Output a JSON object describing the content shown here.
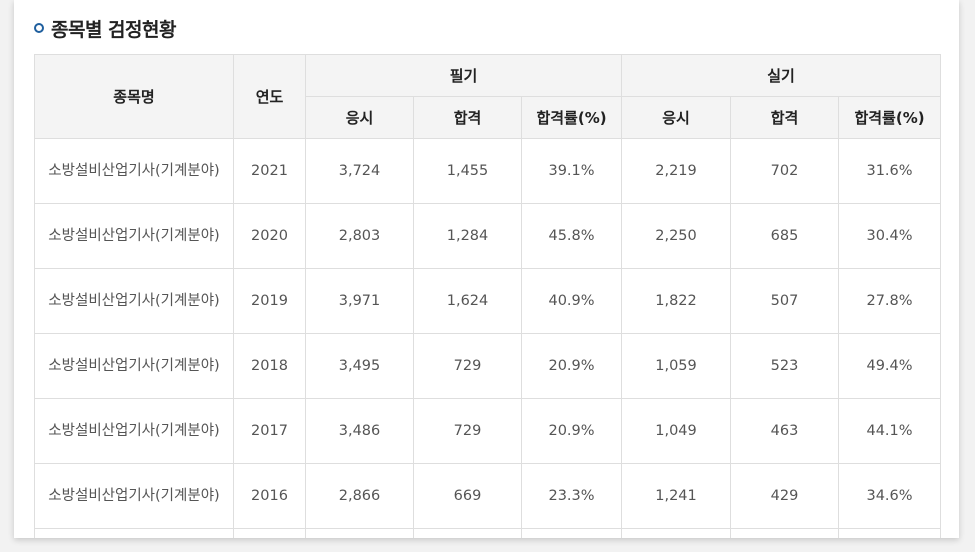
{
  "section": {
    "title": "종목별 검정현황"
  },
  "header": {
    "name_label": "종목명",
    "year_label": "연도",
    "written_label": "필기",
    "practical_label": "실기",
    "applied_label": "응시",
    "passed_label": "합격",
    "rate_label": "합격률(%)"
  },
  "rows": [
    {
      "name": "소방설비산업기사(기계분야)",
      "year": "2021",
      "w_applied": "3,724",
      "w_passed": "1,455",
      "w_rate": "39.1%",
      "p_applied": "2,219",
      "p_passed": "702",
      "p_rate": "31.6%"
    },
    {
      "name": "소방설비산업기사(기계분야)",
      "year": "2020",
      "w_applied": "2,803",
      "w_passed": "1,284",
      "w_rate": "45.8%",
      "p_applied": "2,250",
      "p_passed": "685",
      "p_rate": "30.4%"
    },
    {
      "name": "소방설비산업기사(기계분야)",
      "year": "2019",
      "w_applied": "3,971",
      "w_passed": "1,624",
      "w_rate": "40.9%",
      "p_applied": "1,822",
      "p_passed": "507",
      "p_rate": "27.8%"
    },
    {
      "name": "소방설비산업기사(기계분야)",
      "year": "2018",
      "w_applied": "3,495",
      "w_passed": "729",
      "w_rate": "20.9%",
      "p_applied": "1,059",
      "p_passed": "523",
      "p_rate": "49.4%"
    },
    {
      "name": "소방설비산업기사(기계분야)",
      "year": "2017",
      "w_applied": "3,486",
      "w_passed": "729",
      "w_rate": "20.9%",
      "p_applied": "1,049",
      "p_passed": "463",
      "p_rate": "44.1%"
    },
    {
      "name": "소방설비산업기사(기계분야)",
      "year": "2016",
      "w_applied": "2,866",
      "w_passed": "669",
      "w_rate": "23.3%",
      "p_applied": "1,241",
      "p_passed": "429",
      "p_rate": "34.6%"
    }
  ]
}
